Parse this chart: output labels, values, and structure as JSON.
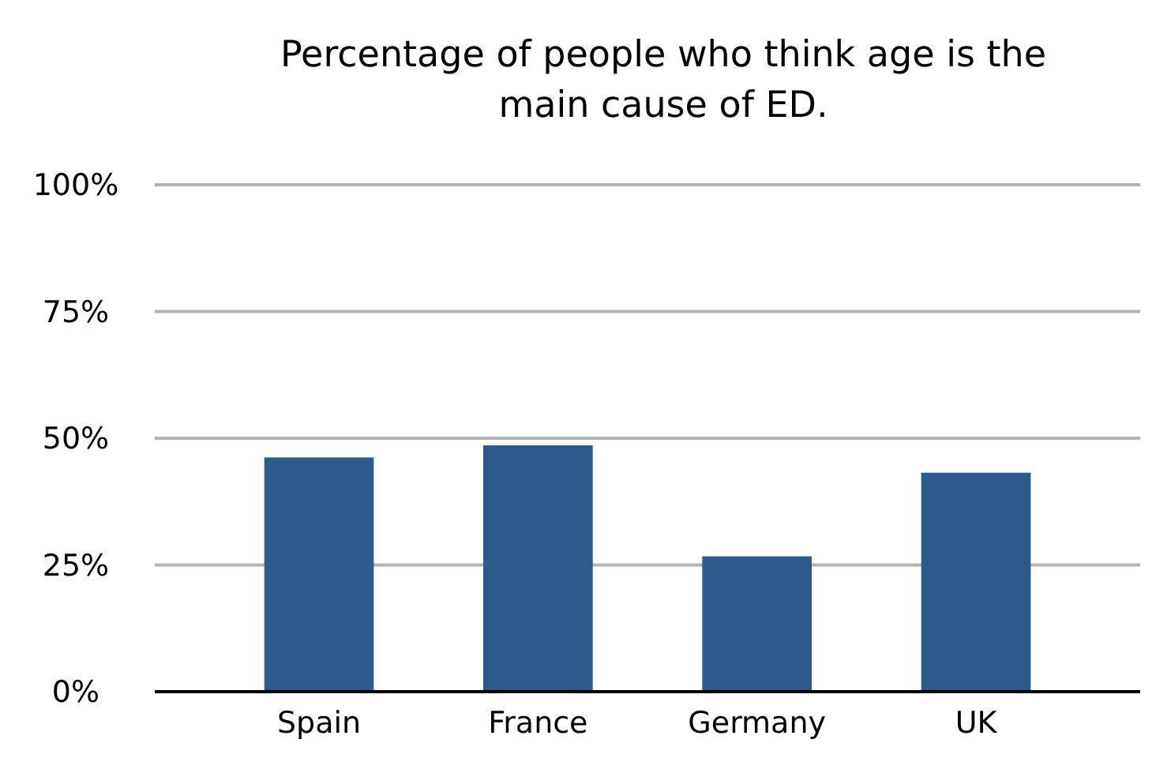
{
  "chart_data": {
    "type": "bar",
    "title": "Percentage of people who think age is the main cause of ED.",
    "categories": [
      "Spain",
      "France",
      "Germany",
      "UK"
    ],
    "values": [
      46.2,
      48.6,
      26.7,
      43.2
    ],
    "color": "#2e5a8c",
    "ylim": [
      0,
      100
    ],
    "yticks": [
      {
        "value": 0,
        "label": "0%"
      },
      {
        "value": 25,
        "label": "25%"
      },
      {
        "value": 50,
        "label": "50%"
      },
      {
        "value": 75,
        "label": "75%"
      },
      {
        "value": 100,
        "label": "100%"
      }
    ],
    "grid": "y"
  }
}
